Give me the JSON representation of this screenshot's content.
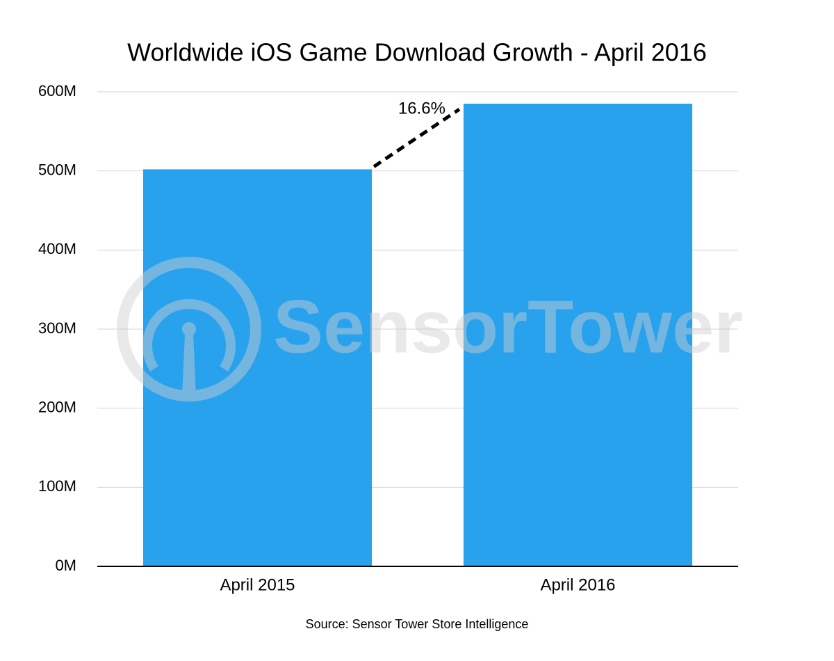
{
  "chart_data": {
    "type": "bar",
    "title": "Worldwide iOS Game Download Growth - April 2016",
    "categories": [
      "April 2015",
      "April 2016"
    ],
    "values": [
      502,
      585
    ],
    "color": "#29a2ee",
    "ylim": [
      0,
      600
    ],
    "yticks": [
      {
        "value": 0,
        "label": "0M"
      },
      {
        "value": 100,
        "label": "100M"
      },
      {
        "value": 200,
        "label": "200M"
      },
      {
        "value": 300,
        "label": "300M"
      },
      {
        "value": 400,
        "label": "400M"
      },
      {
        "value": 500,
        "label": "500M"
      },
      {
        "value": 600,
        "label": "600M"
      }
    ],
    "grid": true,
    "annotations": [
      {
        "text": "16.6%"
      }
    ],
    "watermark": "SensorTower",
    "source": "Source: Sensor Tower Store Intelligence"
  }
}
